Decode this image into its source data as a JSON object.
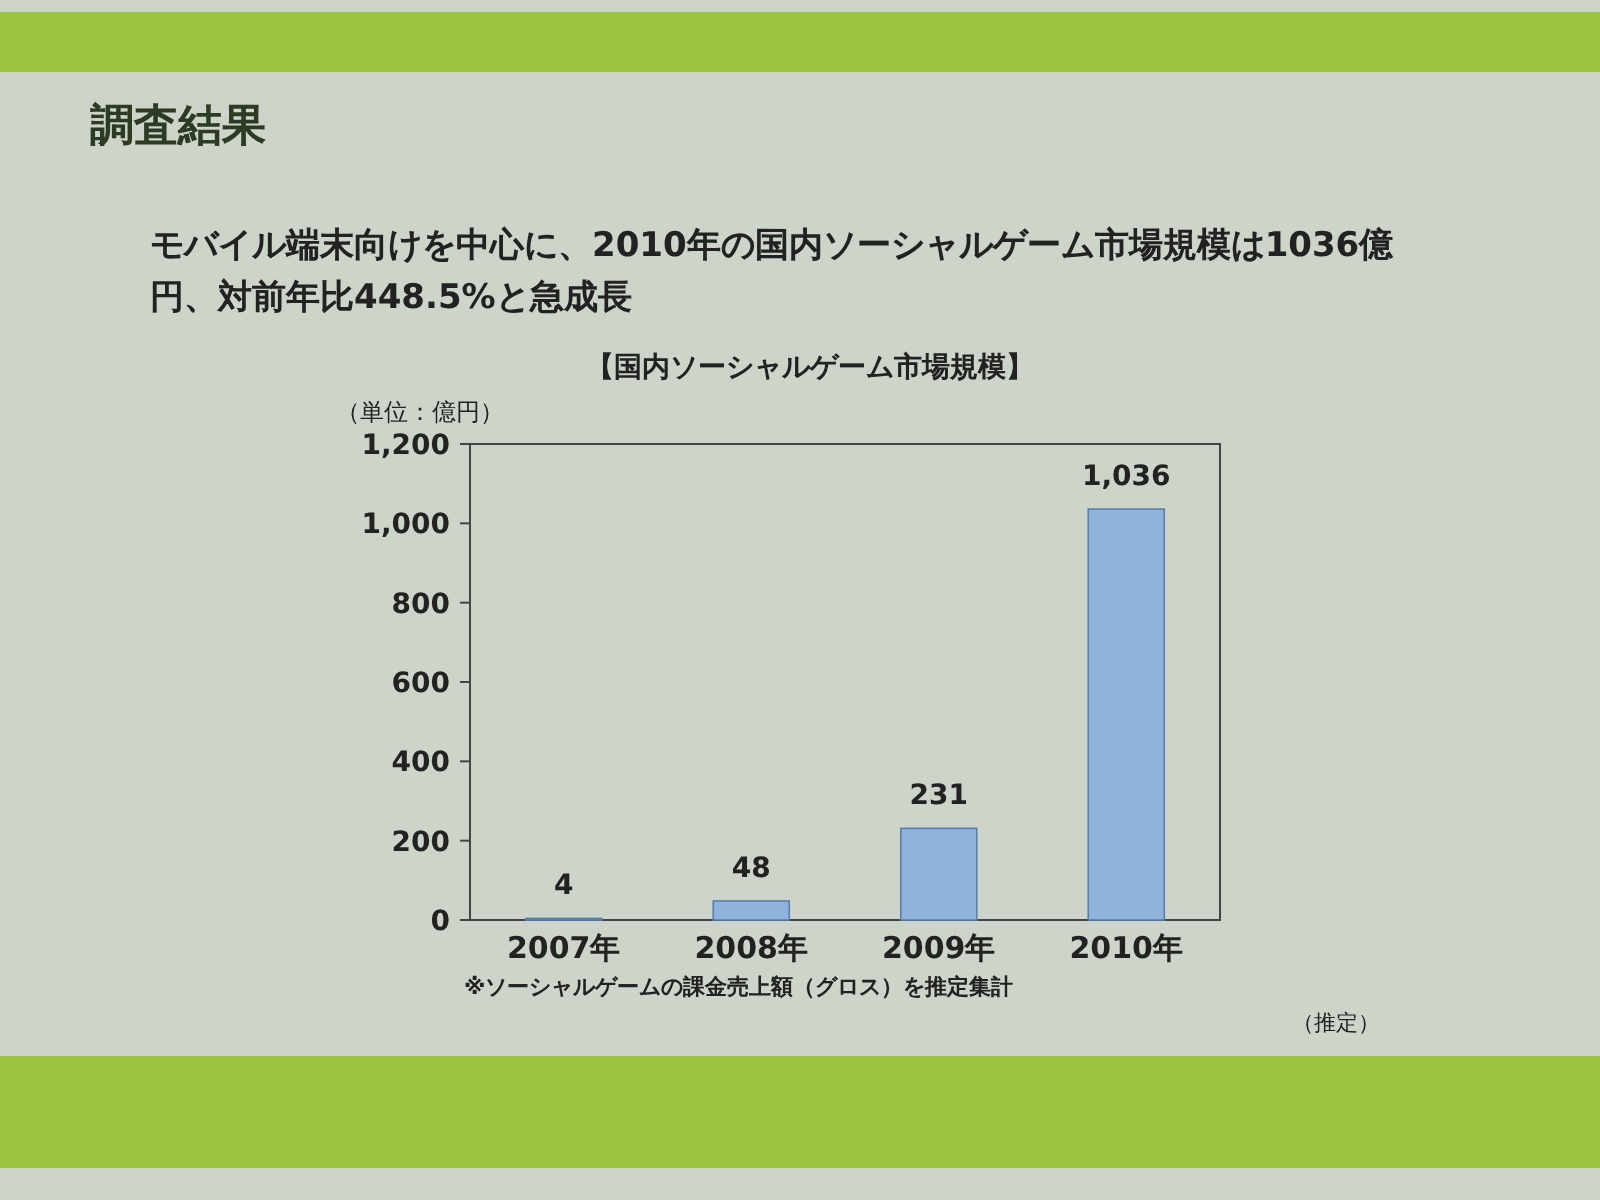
{
  "chart_data": {
    "type": "bar",
    "title": "調査結果",
    "subtitle": "モバイル端末向けを中心に、2010年の国内ソーシャルゲーム市場規模は1036億円、対前年比448.5%と急成長",
    "ylabel": "（単位：億円）",
    "categories": [
      "2007年",
      "2008年",
      "2009年",
      "2010年"
    ],
    "values": [
      4,
      48,
      231,
      1036
    ],
    "value_labels": [
      "4",
      "48",
      "231",
      "1,036"
    ],
    "color": "#8eb4de",
    "ylim": [
      0,
      1200
    ],
    "yticks": [
      0,
      200,
      400,
      600,
      800,
      {
        "value": 1000,
        "label": "1,000"
      },
      {
        "value": 1200,
        "label": "1,200"
      }
    ],
    "annotations": [
      "【国内ソーシャルゲーム市場規模】",
      "※ソーシャルゲームの課金売上額（グロス）を推定集計",
      "（推定）"
    ]
  }
}
